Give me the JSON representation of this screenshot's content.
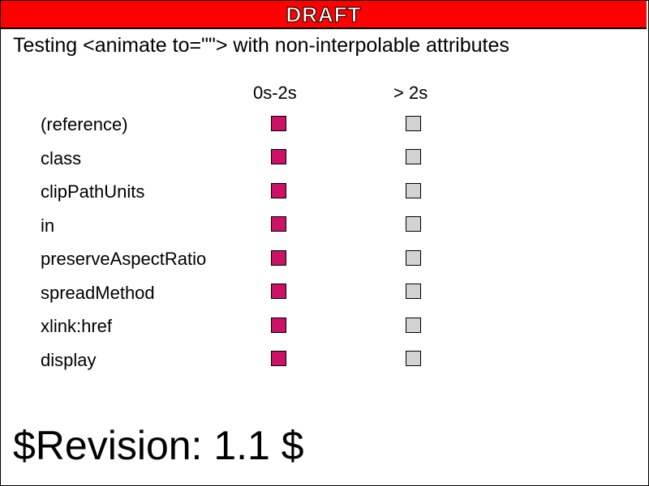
{
  "banner": {
    "label": "DRAFT",
    "background": "#ff0000",
    "text_color": "#ffffff"
  },
  "title": "Testing <animate to=\"\"> with non-interpolable attributes",
  "columns": {
    "during": "0s-2s",
    "after": "> 2s"
  },
  "rows": [
    {
      "label": "(reference)"
    },
    {
      "label": "class"
    },
    {
      "label": "clipPathUnits"
    },
    {
      "label": "in"
    },
    {
      "label": "preserveAspectRatio"
    },
    {
      "label": "spreadMethod"
    },
    {
      "label": "xlink:href"
    },
    {
      "label": "display"
    }
  ],
  "colors": {
    "during_box": "#cc1166",
    "after_box": "#d3d3d3"
  },
  "footer": {
    "revision": "$Revision: 1.1 $"
  }
}
